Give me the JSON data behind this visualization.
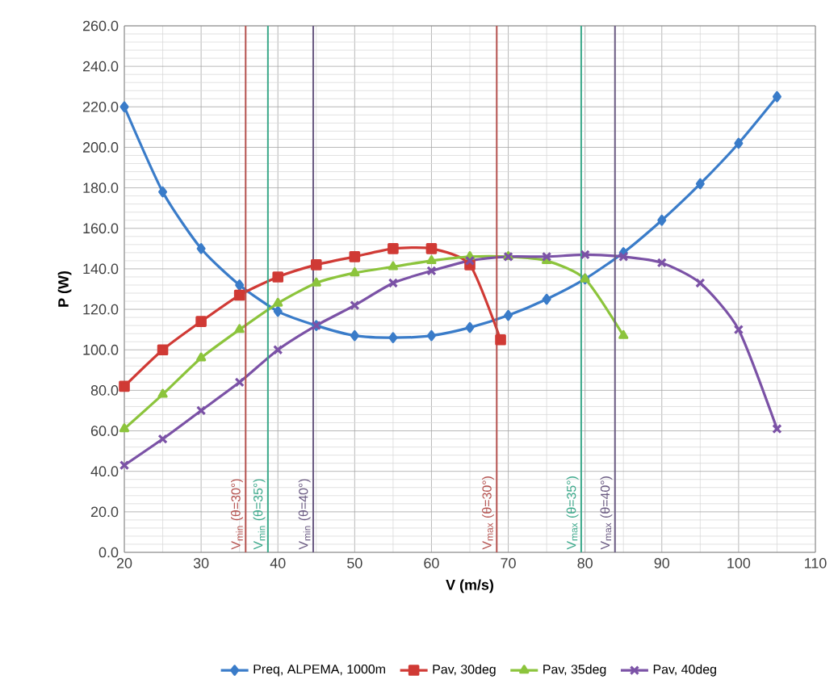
{
  "chart_data": {
    "type": "line",
    "xlabel": "V (m/s)",
    "ylabel": "P (W)",
    "x": [
      20,
      25,
      30,
      35,
      40,
      45,
      50,
      55,
      60,
      65,
      70,
      75,
      80,
      85,
      90,
      95,
      100,
      105
    ],
    "series": [
      {
        "name": "Preq, ALPEMA, 1000m",
        "color": "#3a7cc9",
        "marker": "diamond",
        "values": [
          220,
          178,
          150,
          132,
          119,
          112,
          107,
          106,
          107,
          111,
          117,
          125,
          135,
          148,
          164,
          182,
          202,
          225
        ]
      },
      {
        "name": "Pav, 30deg",
        "color": "#d03a35",
        "marker": "square",
        "x": [
          20,
          25,
          30,
          35,
          40,
          45,
          50,
          55,
          60,
          65,
          69
        ],
        "values": [
          82,
          100,
          114,
          127,
          136,
          142,
          146,
          150,
          150,
          142,
          105
        ]
      },
      {
        "name": "Pav, 35deg",
        "color": "#8cc43c",
        "marker": "triangle",
        "x": [
          20,
          25,
          30,
          35,
          40,
          45,
          50,
          55,
          60,
          65,
          70,
          75,
          80,
          85
        ],
        "values": [
          61,
          78,
          96,
          110,
          123,
          133,
          138,
          141,
          144,
          146,
          146,
          144,
          135,
          107
        ]
      },
      {
        "name": "Pav, 40deg",
        "color": "#7b52a6",
        "marker": "cross",
        "values": [
          43,
          56,
          70,
          84,
          100,
          112,
          122,
          133,
          139,
          144,
          146,
          146,
          147,
          146,
          143,
          133,
          110,
          61
        ]
      }
    ],
    "xlim": [
      20,
      110
    ],
    "xticks": [
      20,
      30,
      40,
      50,
      60,
      70,
      80,
      90,
      100,
      110
    ],
    "ylim": [
      0,
      260
    ],
    "yticks": [
      {
        "value": 0,
        "label": "0.0"
      },
      {
        "value": 20,
        "label": "20.0"
      },
      {
        "value": 40,
        "label": "40.0"
      },
      {
        "value": 60,
        "label": "60.0"
      },
      {
        "value": 80,
        "label": "80.0"
      },
      {
        "value": 100,
        "label": "100.0"
      },
      {
        "value": 120,
        "label": "120.0"
      },
      {
        "value": 140,
        "label": "140.0"
      },
      {
        "value": 160,
        "label": "160.0"
      },
      {
        "value": 180,
        "label": "180.0"
      },
      {
        "value": 200,
        "label": "200.0"
      },
      {
        "value": 220,
        "label": "220.0"
      },
      {
        "value": 240,
        "label": "240.0"
      },
      {
        "value": 260,
        "label": "260.0"
      }
    ],
    "ref_lines": [
      {
        "axis": "x",
        "value": 35.8,
        "color": "#b5524f"
      },
      {
        "axis": "x",
        "value": 38.7,
        "color": "#3aa88a"
      },
      {
        "axis": "x",
        "value": 44.6,
        "color": "#6a5a82"
      },
      {
        "axis": "x",
        "value": 68.5,
        "color": "#b5524f"
      },
      {
        "axis": "x",
        "value": 79.5,
        "color": "#3aa88a"
      },
      {
        "axis": "x",
        "value": 83.9,
        "color": "#6a5a82"
      }
    ],
    "annotations": [
      "V$_{min}$ (θ=30°)",
      "V$_{min}$ (θ=35°)",
      "V$_{min}$ (θ=40°)",
      "V$_{max}$ (θ=30°)",
      "V$_{max}$ (θ=35°)",
      "V$_{max}$ (θ=40°)"
    ],
    "grid": true,
    "legend": "bottom",
    "line_style": "solid"
  }
}
